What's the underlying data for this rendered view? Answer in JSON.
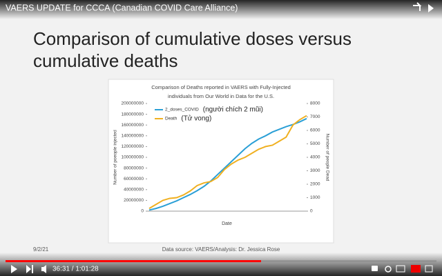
{
  "video_title": "VAERS UPDATE for CCCA (Canadian COVID Care Alliance)",
  "slide": {
    "heading_lines": [
      "Comparison of cumulative doses versus",
      "cumulative deaths"
    ],
    "date": "9/2/21",
    "source": "Data source: VAERS/Analysis: Dr. Jessica Rose"
  },
  "player": {
    "time": "36:31 / 1:01:28"
  },
  "chart_data": {
    "type": "line",
    "title_lines": [
      "Comparison of Deaths reported in VAERS with Fully-Injected",
      "individuals from Our World in Data for the U.S."
    ],
    "x_label": "Date",
    "y_label": "Number of poeople injected",
    "y2_label": "Number of people Dead",
    "categories": [
      null,
      null,
      null,
      null,
      null,
      null,
      null,
      null,
      null,
      null,
      null,
      null,
      null,
      null,
      null,
      null,
      null,
      null,
      null,
      null,
      null,
      null,
      null,
      null
    ],
    "series": [
      {
        "name": "2_doses_COVID",
        "color": "#2a9fd6",
        "note_label": "(người chích 2 mũi)",
        "values": [
          2000000,
          5000000,
          9000000,
          14000000,
          19000000,
          25000000,
          31000000,
          38000000,
          46000000,
          56000000,
          68000000,
          80000000,
          92000000,
          104000000,
          116000000,
          126000000,
          134000000,
          140000000,
          147000000,
          152000000,
          157000000,
          161000000,
          166000000,
          172000000
        ]
      },
      {
        "name": "Death",
        "color": "#f0b020",
        "axis": "y2",
        "note_label": "(Tử vong)",
        "values": [
          200,
          500,
          800,
          950,
          1000,
          1200,
          1500,
          1900,
          2100,
          2200,
          2500,
          3100,
          3500,
          3800,
          4000,
          4300,
          4600,
          4800,
          4900,
          5200,
          5500,
          6400,
          6800,
          7100
        ]
      }
    ],
    "ylim": [
      0,
      200000000
    ],
    "yticks": [
      0,
      20000000,
      40000000,
      60000000,
      80000000,
      100000000,
      120000000,
      140000000,
      160000000,
      180000000,
      200000000
    ],
    "y2lim": [
      0,
      8000
    ],
    "y2ticks": [
      0,
      1000,
      2000,
      3000,
      4000,
      5000,
      6000,
      7000,
      8000
    ],
    "legend": "top-left"
  }
}
